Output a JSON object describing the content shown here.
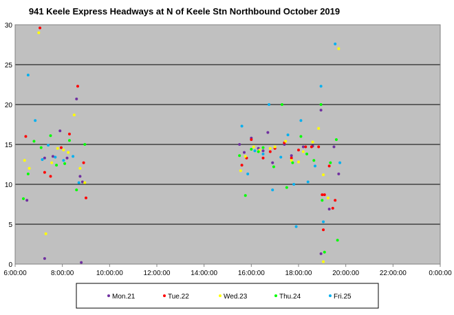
{
  "chart_data": {
    "type": "scatter",
    "title": "941 Keele Express Headways at N of Keele Stn Northbound October 2019",
    "xlabel": "",
    "ylabel": "",
    "x_unit": "hours",
    "xlim": [
      6,
      24
    ],
    "ylim": [
      0,
      30
    ],
    "x_tick_values": [
      6,
      8,
      10,
      12,
      14,
      16,
      18,
      20,
      22,
      24
    ],
    "x_tick_labels": [
      "6:00:00",
      "8:00:00",
      "10:00:00",
      "12:00:00",
      "14:00:00",
      "16:00:00",
      "18:00:00",
      "20:00:00",
      "22:00:00",
      "0:00:00"
    ],
    "y_ticks": [
      0,
      5,
      10,
      15,
      20,
      25,
      30
    ],
    "grid": "horizontal",
    "background": "#c0c0c0",
    "legend_position": "bottom",
    "series": [
      {
        "name": "Mon.21",
        "color": "#7030a0",
        "points": [
          [
            6.5,
            8
          ],
          [
            7.25,
            0.7
          ],
          [
            7.25,
            13.3
          ],
          [
            7.6,
            13.5
          ],
          [
            7.9,
            16.7
          ],
          [
            8.2,
            13.3
          ],
          [
            8.6,
            20.7
          ],
          [
            8.75,
            11
          ],
          [
            8.8,
            0.2
          ],
          [
            8.85,
            10.3
          ],
          [
            15.5,
            15
          ],
          [
            15.7,
            14
          ],
          [
            16.0,
            15.8
          ],
          [
            16.3,
            14.5
          ],
          [
            16.5,
            14.2
          ],
          [
            16.7,
            16.5
          ],
          [
            16.9,
            12.7
          ],
          [
            17.4,
            15
          ],
          [
            17.7,
            13.6
          ],
          [
            18.2,
            14.7
          ],
          [
            18.6,
            14.8
          ],
          [
            18.95,
            19.3
          ],
          [
            18.95,
            1.3
          ],
          [
            19.3,
            6.9
          ],
          [
            19.5,
            14.7
          ],
          [
            19.7,
            11.3
          ]
        ]
      },
      {
        "name": "Tue.22",
        "color": "#ff0000",
        "points": [
          [
            6.45,
            16
          ],
          [
            7.05,
            29.6
          ],
          [
            7.25,
            11.5
          ],
          [
            7.5,
            11
          ],
          [
            7.95,
            14.6
          ],
          [
            8.3,
            16.3
          ],
          [
            8.65,
            22.3
          ],
          [
            8.9,
            12.7
          ],
          [
            9.0,
            8.3
          ],
          [
            15.6,
            12.4
          ],
          [
            15.8,
            13.3
          ],
          [
            16.0,
            15.6
          ],
          [
            16.5,
            13.3
          ],
          [
            16.8,
            14.1
          ],
          [
            17.0,
            14.5
          ],
          [
            17.4,
            15.2
          ],
          [
            17.7,
            13.3
          ],
          [
            18.0,
            14.3
          ],
          [
            18.3,
            14.7
          ],
          [
            18.55,
            14.7
          ],
          [
            18.85,
            14.7
          ],
          [
            19.0,
            8.7
          ],
          [
            19.05,
            4.3
          ],
          [
            19.1,
            8.7
          ],
          [
            19.3,
            12.3
          ],
          [
            19.45,
            7
          ],
          [
            19.55,
            8
          ]
        ]
      },
      {
        "name": "Wed.23",
        "color": "#ffff00",
        "points": [
          [
            6.4,
            13
          ],
          [
            6.6,
            12
          ],
          [
            7.0,
            29
          ],
          [
            7.3,
            3.8
          ],
          [
            7.55,
            12.7
          ],
          [
            7.8,
            14.5
          ],
          [
            8.05,
            14.3
          ],
          [
            8.25,
            14
          ],
          [
            8.5,
            18.7
          ],
          [
            8.75,
            12
          ],
          [
            8.95,
            10.2
          ],
          [
            15.55,
            11.7
          ],
          [
            15.75,
            13.5
          ],
          [
            16.1,
            14.7
          ],
          [
            16.35,
            14.3
          ],
          [
            16.8,
            14.5
          ],
          [
            17.0,
            14.7
          ],
          [
            17.45,
            15.4
          ],
          [
            17.7,
            13
          ],
          [
            18.0,
            12.8
          ],
          [
            18.2,
            14.1
          ],
          [
            18.6,
            15.3
          ],
          [
            18.85,
            17
          ],
          [
            19.05,
            11.2
          ],
          [
            19.05,
            0.3
          ],
          [
            19.25,
            8.3
          ],
          [
            19.7,
            27
          ]
        ]
      },
      {
        "name": "Thu.24",
        "color": "#00ff00",
        "points": [
          [
            6.35,
            8.2
          ],
          [
            6.55,
            11.3
          ],
          [
            6.8,
            15.4
          ],
          [
            7.1,
            14.6
          ],
          [
            7.5,
            16.1
          ],
          [
            7.75,
            12.4
          ],
          [
            8.1,
            12.6
          ],
          [
            8.3,
            15.5
          ],
          [
            8.6,
            9.3
          ],
          [
            8.95,
            15
          ],
          [
            15.5,
            13.6
          ],
          [
            15.75,
            8.6
          ],
          [
            16.0,
            14.4
          ],
          [
            16.3,
            14.1
          ],
          [
            16.5,
            14.6
          ],
          [
            16.95,
            12.2
          ],
          [
            17.3,
            20
          ],
          [
            17.5,
            9.6
          ],
          [
            17.75,
            12.7
          ],
          [
            18.1,
            16
          ],
          [
            18.35,
            13.8
          ],
          [
            18.65,
            13
          ],
          [
            18.95,
            20
          ],
          [
            19.0,
            8
          ],
          [
            19.1,
            1.5
          ],
          [
            19.35,
            12.7
          ],
          [
            19.6,
            15.6
          ],
          [
            19.65,
            3
          ]
        ]
      },
      {
        "name": "Fri.25",
        "color": "#00b0f0",
        "points": [
          [
            6.55,
            23.7
          ],
          [
            6.85,
            18
          ],
          [
            7.15,
            13.1
          ],
          [
            7.4,
            14.9
          ],
          [
            7.7,
            13.4
          ],
          [
            8.05,
            13
          ],
          [
            8.45,
            13.5
          ],
          [
            8.7,
            10.2
          ],
          [
            15.6,
            17.3
          ],
          [
            15.85,
            11.3
          ],
          [
            16.15,
            14.2
          ],
          [
            16.5,
            13.8
          ],
          [
            16.75,
            20
          ],
          [
            16.9,
            9.3
          ],
          [
            17.25,
            13.4
          ],
          [
            17.55,
            16.2
          ],
          [
            17.8,
            10
          ],
          [
            17.9,
            4.7
          ],
          [
            18.1,
            18
          ],
          [
            18.4,
            10.3
          ],
          [
            18.7,
            12.3
          ],
          [
            18.95,
            22.3
          ],
          [
            19.05,
            5.3
          ],
          [
            19.55,
            27.6
          ],
          [
            19.75,
            12.7
          ]
        ]
      }
    ]
  }
}
